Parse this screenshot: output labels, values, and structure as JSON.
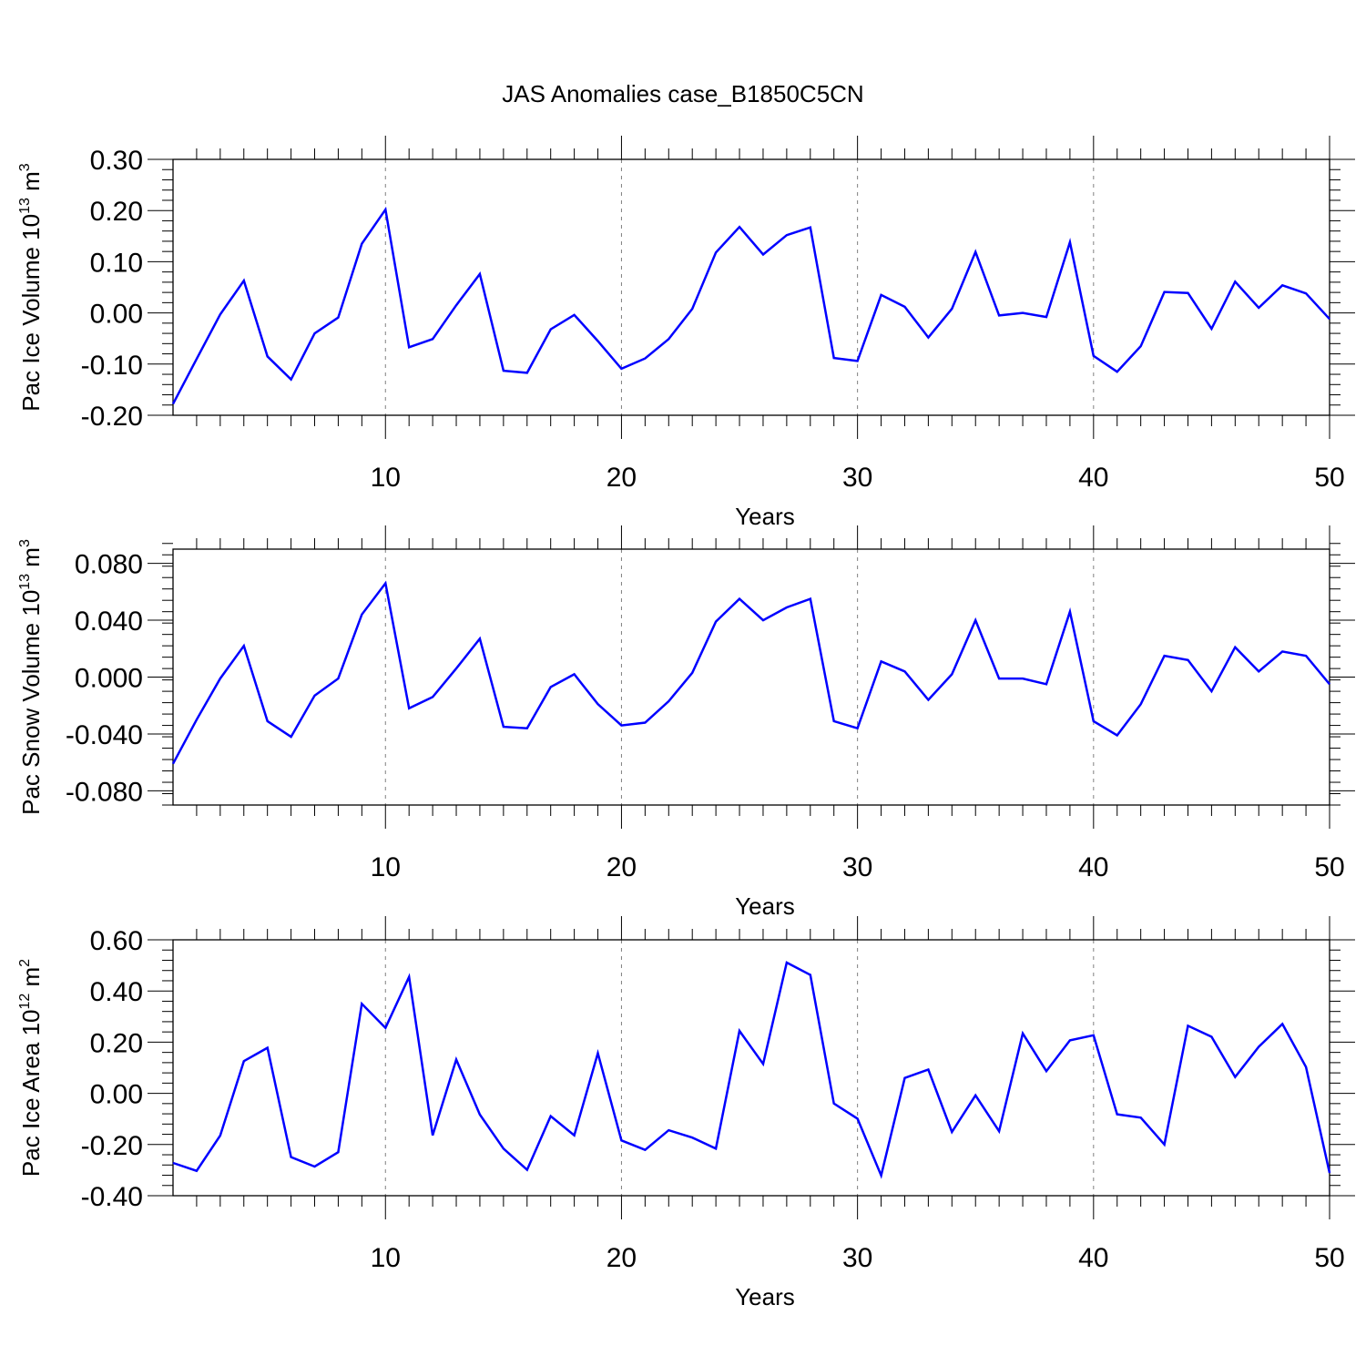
{
  "title": "JAS Anomalies case_B1850C5CN",
  "colors": {
    "series": "#0000ff",
    "axis": "#000000",
    "grid": "#808080",
    "background": "#ffffff"
  },
  "chart_data": [
    {
      "type": "line",
      "xlabel": "Years",
      "ylabel": {
        "text": "Pac Ice Volume 10",
        "exp": "13",
        "unit": " m",
        "unit_exp": "3"
      },
      "xlim": [
        1,
        50
      ],
      "ylim": [
        -0.2,
        0.3
      ],
      "x_ticks": [
        10,
        20,
        30,
        40,
        50
      ],
      "x_tick_labels": [
        "10",
        "20",
        "30",
        "40",
        "50"
      ],
      "y_ticks": [
        -0.2,
        -0.1,
        0.0,
        0.1,
        0.2,
        0.3
      ],
      "y_tick_labels": [
        "-0.20",
        "-0.10",
        "0.00",
        "0.10",
        "0.20",
        "0.30"
      ],
      "grid": "vertical dashed at major x ticks",
      "x": [
        1,
        2,
        3,
        4,
        5,
        6,
        7,
        8,
        9,
        10,
        11,
        12,
        13,
        14,
        15,
        16,
        17,
        18,
        19,
        20,
        21,
        22,
        23,
        24,
        25,
        26,
        27,
        28,
        29,
        30,
        31,
        32,
        33,
        34,
        35,
        36,
        37,
        38,
        39,
        40,
        41,
        42,
        43,
        44,
        45,
        46,
        47,
        48,
        49,
        50
      ],
      "values": [
        -0.178,
        -0.09,
        -0.003,
        0.063,
        -0.085,
        -0.13,
        -0.04,
        -0.009,
        0.135,
        0.202,
        -0.067,
        -0.051,
        0.015,
        0.076,
        -0.113,
        -0.117,
        -0.032,
        -0.004,
        -0.055,
        -0.109,
        -0.089,
        -0.051,
        0.008,
        0.118,
        0.168,
        0.114,
        0.152,
        0.167,
        -0.088,
        -0.094,
        0.035,
        0.012,
        -0.048,
        0.008,
        0.119,
        -0.005,
        0.0,
        -0.008,
        0.138,
        -0.084,
        -0.115,
        -0.065,
        0.041,
        0.039,
        -0.031,
        0.061,
        0.01,
        0.054,
        0.038,
        -0.012
      ]
    },
    {
      "type": "line",
      "xlabel": "Years",
      "ylabel": {
        "text": "Pac Snow Volume 10",
        "exp": "13",
        "unit": " m",
        "unit_exp": "3"
      },
      "xlim": [
        1,
        50
      ],
      "ylim": [
        -0.09,
        0.09
      ],
      "x_ticks": [
        10,
        20,
        30,
        40,
        50
      ],
      "x_tick_labels": [
        "10",
        "20",
        "30",
        "40",
        "50"
      ],
      "y_ticks": [
        -0.08,
        -0.04,
        0.0,
        0.04,
        0.08
      ],
      "y_tick_labels": [
        "-0.080",
        "-0.040",
        "0.000",
        "0.040",
        "0.080"
      ],
      "grid": "vertical dashed at major x ticks",
      "x": [
        1,
        2,
        3,
        4,
        5,
        6,
        7,
        8,
        9,
        10,
        11,
        12,
        13,
        14,
        15,
        16,
        17,
        18,
        19,
        20,
        21,
        22,
        23,
        24,
        25,
        26,
        27,
        28,
        29,
        30,
        31,
        32,
        33,
        34,
        35,
        36,
        37,
        38,
        39,
        40,
        41,
        42,
        43,
        44,
        45,
        46,
        47,
        48,
        49,
        50
      ],
      "values": [
        -0.061,
        -0.03,
        -0.001,
        0.022,
        -0.031,
        -0.042,
        -0.013,
        -0.001,
        0.044,
        0.066,
        -0.022,
        -0.014,
        0.006,
        0.027,
        -0.035,
        -0.036,
        -0.007,
        0.002,
        -0.019,
        -0.034,
        -0.032,
        -0.017,
        0.003,
        0.039,
        0.055,
        0.04,
        0.049,
        0.055,
        -0.031,
        -0.036,
        0.011,
        0.004,
        -0.016,
        0.002,
        0.04,
        -0.001,
        -0.001,
        -0.005,
        0.046,
        -0.031,
        -0.041,
        -0.019,
        0.015,
        0.012,
        -0.01,
        0.021,
        0.004,
        0.018,
        0.015,
        -0.005
      ]
    },
    {
      "type": "line",
      "xlabel": "Years",
      "ylabel": {
        "text": "Pac Ice Area 10",
        "exp": "12",
        "unit": " m",
        "unit_exp": "2"
      },
      "xlim": [
        1,
        50
      ],
      "ylim": [
        -0.4,
        0.6
      ],
      "x_ticks": [
        10,
        20,
        30,
        40,
        50
      ],
      "x_tick_labels": [
        "10",
        "20",
        "30",
        "40",
        "50"
      ],
      "y_ticks": [
        -0.4,
        -0.2,
        0.0,
        0.2,
        0.4,
        0.6
      ],
      "y_tick_labels": [
        "-0.40",
        "-0.20",
        "0.00",
        "0.20",
        "0.40",
        "0.60"
      ],
      "grid": "vertical dashed at major x ticks",
      "x": [
        1,
        2,
        3,
        4,
        5,
        6,
        7,
        8,
        9,
        10,
        11,
        12,
        13,
        14,
        15,
        16,
        17,
        18,
        19,
        20,
        21,
        22,
        23,
        24,
        25,
        26,
        27,
        28,
        29,
        30,
        31,
        32,
        33,
        34,
        35,
        36,
        37,
        38,
        39,
        40,
        41,
        42,
        43,
        44,
        45,
        46,
        47,
        48,
        49,
        50
      ],
      "values": [
        -0.272,
        -0.303,
        -0.165,
        0.126,
        0.178,
        -0.249,
        -0.286,
        -0.23,
        0.35,
        0.256,
        0.455,
        -0.164,
        0.132,
        -0.083,
        -0.216,
        -0.299,
        -0.089,
        -0.164,
        0.157,
        -0.184,
        -0.221,
        -0.144,
        -0.173,
        -0.216,
        0.244,
        0.115,
        0.511,
        0.463,
        -0.04,
        -0.099,
        -0.321,
        0.06,
        0.093,
        -0.151,
        -0.008,
        -0.148,
        0.234,
        0.087,
        0.207,
        0.227,
        -0.082,
        -0.095,
        -0.2,
        0.264,
        0.221,
        0.064,
        0.182,
        0.271,
        0.103,
        -0.311
      ]
    }
  ]
}
